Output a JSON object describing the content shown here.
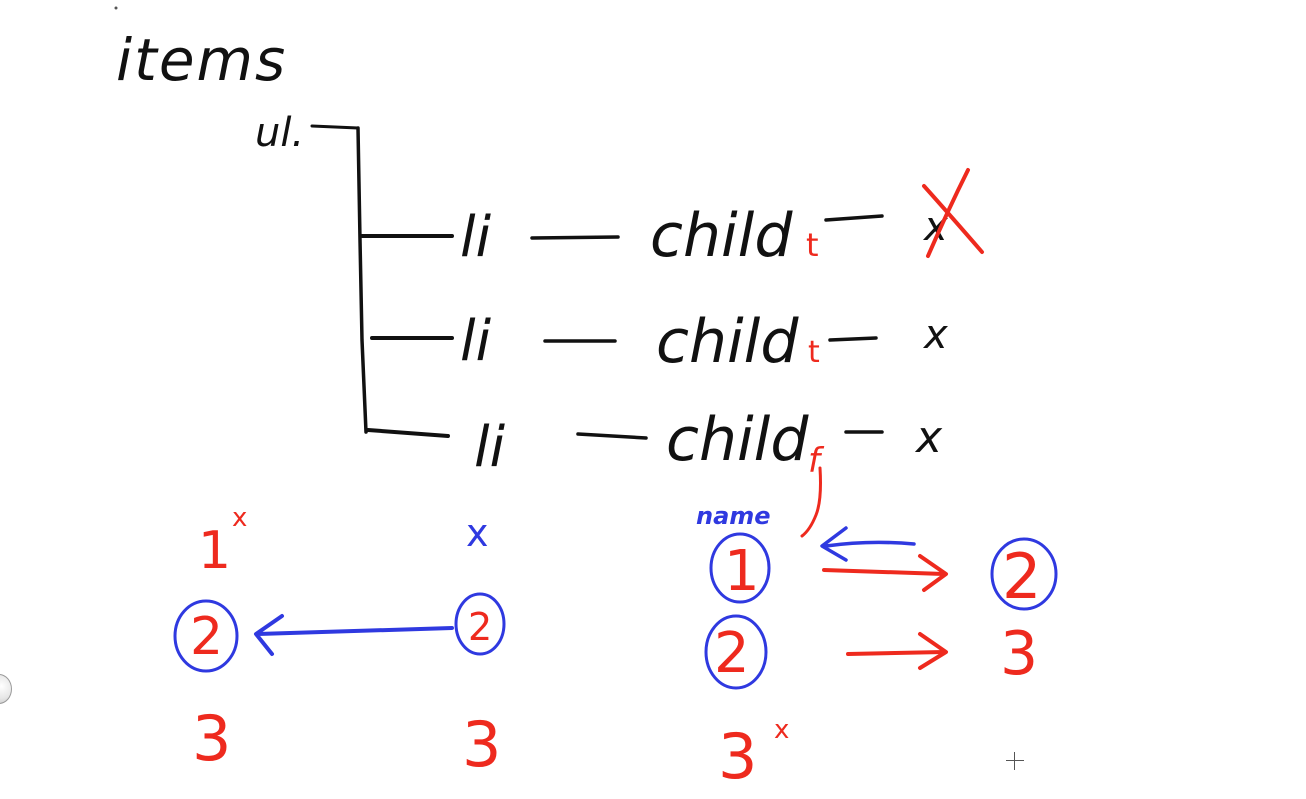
{
  "tree": {
    "root_label": "items",
    "list_label": "ul.",
    "rows": [
      {
        "item": "li",
        "child": "child",
        "flag": "t",
        "mark": "x"
      },
      {
        "item": "li",
        "child": "child",
        "flag": "t",
        "mark": "x"
      },
      {
        "item": "li",
        "child": "child",
        "flag": "f",
        "mark": "x"
      }
    ]
  },
  "examples": {
    "left": {
      "column_a": [
        "1",
        "2",
        "3"
      ],
      "column_a_mark": "x",
      "column_b_mark": "x",
      "column_b": [
        "2",
        "3"
      ]
    },
    "right": {
      "annotation": "name",
      "column_a": [
        "1",
        "2",
        "3"
      ],
      "column_a_mark": "x",
      "column_b": [
        "2",
        "3"
      ]
    }
  },
  "colors": {
    "black_ink": "#111111",
    "red_ink": "#ee2a1e",
    "blue_ink": "#2f39e0"
  }
}
